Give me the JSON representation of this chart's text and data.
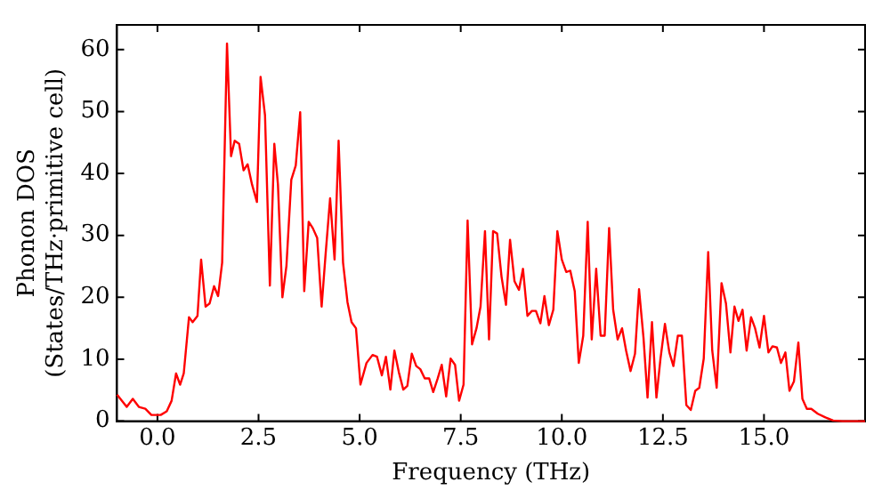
{
  "chart_data": {
    "type": "line",
    "xlabel": "Frequency (THz)",
    "ylabel": "Phonon DOS\n(States/THz·primitive cell)",
    "xlim": [
      -1.0,
      17.5
    ],
    "ylim": [
      0,
      64
    ],
    "xticks": [
      {
        "value": 0,
        "label": "0.0"
      },
      {
        "value": 2.5,
        "label": "2.5"
      },
      {
        "value": 5,
        "label": "5.0"
      },
      {
        "value": 7.5,
        "label": "7.5"
      },
      {
        "value": 10,
        "label": "10.0"
      },
      {
        "value": 12.5,
        "label": "12.5"
      },
      {
        "value": 15,
        "label": "15.0"
      }
    ],
    "yticks": [
      0,
      10,
      20,
      30,
      40,
      50,
      60
    ],
    "marker": "none",
    "line_style": "solid",
    "series": [
      {
        "color": "#ff0000",
        "x": [
          -1.0,
          -0.76,
          -0.61,
          -0.46,
          -0.3,
          -0.15,
          0.08,
          0.23,
          0.35,
          0.46,
          0.56,
          0.65,
          0.78,
          0.87,
          0.99,
          1.08,
          1.19,
          1.29,
          1.4,
          1.5,
          1.6,
          1.72,
          1.82,
          1.91,
          2.02,
          2.13,
          2.23,
          2.34,
          2.46,
          2.55,
          2.66,
          2.78,
          2.89,
          2.98,
          3.09,
          3.19,
          3.31,
          3.42,
          3.53,
          3.63,
          3.74,
          3.84,
          3.95,
          4.06,
          4.16,
          4.27,
          4.38,
          4.48,
          4.59,
          4.7,
          4.8,
          4.91,
          5.02,
          5.17,
          5.32,
          5.43,
          5.55,
          5.65,
          5.76,
          5.86,
          5.97,
          6.08,
          6.18,
          6.29,
          6.4,
          6.5,
          6.61,
          6.72,
          6.82,
          6.93,
          7.03,
          7.14,
          7.25,
          7.36,
          7.46,
          7.57,
          7.67,
          7.78,
          7.89,
          7.99,
          8.1,
          8.2,
          8.3,
          8.4,
          8.51,
          8.62,
          8.72,
          8.83,
          8.94,
          9.04,
          9.15,
          9.26,
          9.36,
          9.47,
          9.57,
          9.68,
          9.79,
          9.89,
          10.0,
          10.11,
          10.21,
          10.32,
          10.42,
          10.53,
          10.64,
          10.74,
          10.85,
          10.96,
          11.06,
          11.17,
          11.27,
          11.38,
          11.49,
          11.59,
          11.7,
          11.81,
          11.91,
          12.02,
          12.12,
          12.23,
          12.34,
          12.44,
          12.55,
          12.66,
          12.76,
          12.87,
          12.97,
          13.08,
          13.19,
          13.3,
          13.4,
          13.51,
          13.62,
          13.72,
          13.83,
          13.95,
          14.06,
          14.17,
          14.27,
          14.37,
          14.47,
          14.57,
          14.68,
          14.78,
          14.89,
          15.0,
          15.11,
          15.21,
          15.32,
          15.42,
          15.53,
          15.63,
          15.74,
          15.85,
          15.95,
          16.06,
          16.17,
          16.33,
          16.52,
          16.71,
          16.94,
          17.5
        ],
        "values": [
          4.3,
          2.3,
          3.6,
          2.3,
          2.0,
          1.0,
          1.0,
          1.6,
          3.3,
          7.7,
          5.9,
          7.7,
          16.8,
          16.0,
          17.0,
          26.1,
          18.5,
          19.0,
          21.8,
          20.2,
          25.6,
          61.0,
          42.8,
          45.3,
          44.8,
          40.5,
          41.5,
          38.2,
          35.4,
          55.6,
          49.4,
          21.9,
          44.8,
          38.2,
          20.0,
          25.1,
          39.0,
          41.3,
          49.9,
          21.0,
          32.2,
          31.2,
          29.6,
          18.5,
          27.1,
          36.0,
          26.1,
          45.3,
          25.6,
          19.2,
          16.0,
          15.0,
          5.9,
          9.4,
          10.7,
          10.4,
          7.4,
          10.4,
          5.1,
          11.4,
          7.9,
          5.1,
          5.7,
          10.9,
          8.9,
          8.4,
          6.9,
          6.9,
          4.7,
          6.9,
          9.1,
          4.0,
          10.1,
          9.1,
          3.3,
          5.9,
          32.4,
          12.4,
          15.0,
          18.5,
          30.7,
          13.2,
          30.7,
          30.3,
          23.3,
          18.8,
          29.3,
          22.6,
          21.2,
          24.6,
          17.0,
          17.8,
          17.8,
          15.8,
          20.2,
          15.5,
          18.0,
          30.7,
          26.1,
          24.1,
          24.3,
          21.0,
          9.4,
          13.8,
          32.2,
          13.2,
          24.6,
          13.8,
          13.8,
          31.2,
          18.0,
          13.2,
          15.0,
          11.4,
          8.1,
          10.9,
          21.3,
          13.5,
          3.8,
          16.0,
          3.8,
          10.1,
          15.7,
          11.1,
          8.9,
          13.8,
          13.8,
          2.6,
          1.8,
          4.9,
          5.4,
          10.1,
          27.3,
          11.4,
          5.4,
          22.3,
          19.0,
          11.1,
          18.5,
          16.2,
          18.0,
          11.4,
          16.8,
          15.0,
          11.9,
          17.0,
          11.1,
          12.1,
          11.9,
          9.4,
          11.1,
          4.9,
          6.4,
          12.7,
          3.6,
          2.0,
          2.0,
          1.2,
          0.6,
          0.1,
          0,
          0
        ]
      }
    ]
  }
}
